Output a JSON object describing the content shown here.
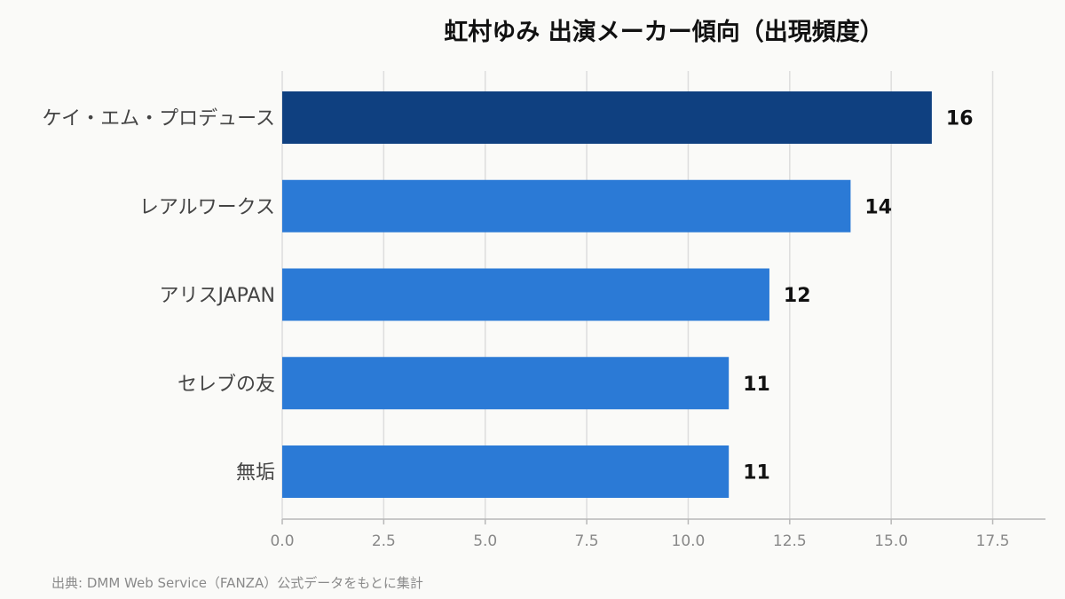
{
  "chart_data": {
    "type": "bar",
    "orientation": "horizontal",
    "title": "虹村ゆみ 出演メーカー傾向（出現頻度）",
    "categories": [
      "ケイ・エム・プロデュース",
      "レアルワークス",
      "アリスJAPAN",
      "セレブの友",
      "無垢"
    ],
    "values": [
      16,
      14,
      12,
      11,
      11
    ],
    "data_labels": [
      "16",
      "14",
      "12",
      "11",
      "11"
    ],
    "xlim": [
      0,
      18.8
    ],
    "x_ticks": [
      0,
      2.5,
      5,
      7.5,
      10,
      12.5,
      15,
      17.5
    ],
    "x_tick_labels": [
      "0.0",
      "2.5",
      "5.0",
      "7.5",
      "10.0",
      "12.5",
      "15.0",
      "17.5"
    ],
    "xlabel": "",
    "ylabel": "",
    "grid": "vertical",
    "legend": "none",
    "colors": {
      "highlight": "#0f4080",
      "bar": "#2b7ad6",
      "grid": "#dddddd",
      "axis": "#b8b8b8",
      "tick_text": "#888888",
      "category_text": "#444444",
      "value_text": "#111111"
    }
  },
  "source_note": "出典: DMM Web Service（FANZA）公式データをもとに集計"
}
